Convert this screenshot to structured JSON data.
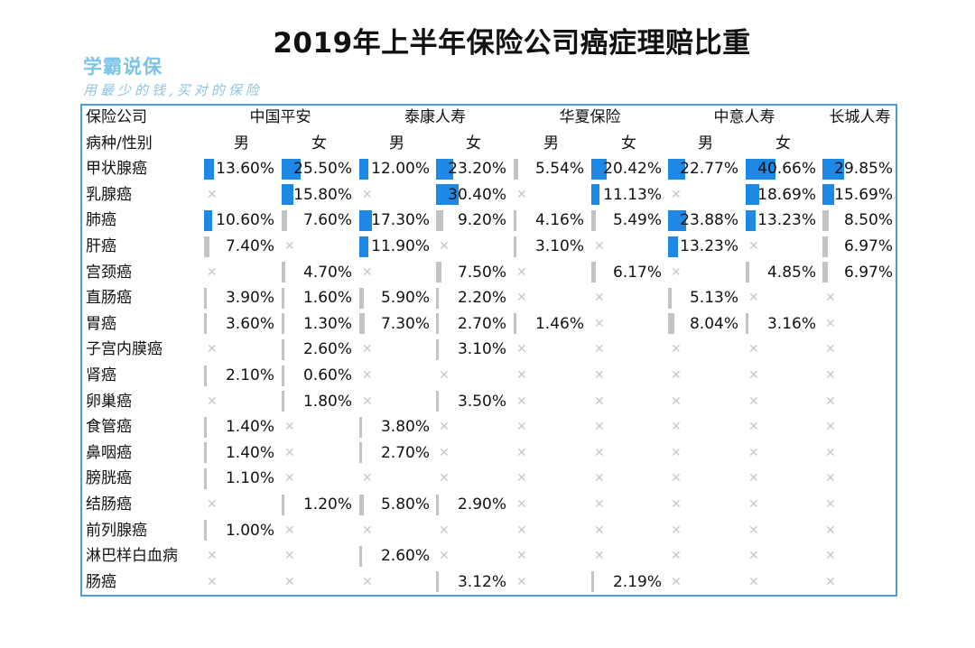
{
  "title": "2019年上半年保险公司癌症理赔比重",
  "logo": {
    "name": "学霸说保",
    "slogan": "用最少的钱,买对的保险"
  },
  "colors": {
    "bar_high": "#1e88e5",
    "bar_low": "#c3c3c3",
    "border": "#4a9ee0",
    "missing": "#c8c8c8"
  },
  "table": {
    "company_header": "保险公司",
    "subheader": "病种/性别",
    "companies": [
      "中国平安",
      "泰康人寿",
      "华夏保险",
      "中意人寿",
      "长城人寿"
    ],
    "genders": [
      "男",
      "女",
      "男",
      "女",
      "男",
      "女",
      "男",
      "女",
      ""
    ],
    "missing_icon": "cross-icon",
    "rows": [
      {
        "disease": "甲状腺癌",
        "values": [
          "13.60%",
          "25.50%",
          "12.00%",
          "23.20%",
          "5.54%",
          "20.42%",
          "22.77%",
          "40.66%",
          "29.85%"
        ]
      },
      {
        "disease": "乳腺癌",
        "values": [
          null,
          "15.80%",
          null,
          "30.40%",
          null,
          "11.13%",
          null,
          "18.69%",
          "15.69%"
        ]
      },
      {
        "disease": "肺癌",
        "values": [
          "10.60%",
          "7.60%",
          "17.30%",
          "9.20%",
          "4.16%",
          "5.49%",
          "23.88%",
          "13.23%",
          "8.50%"
        ]
      },
      {
        "disease": "肝癌",
        "values": [
          "7.40%",
          null,
          "11.90%",
          null,
          "3.10%",
          null,
          "13.23%",
          null,
          "6.97%"
        ]
      },
      {
        "disease": "宫颈癌",
        "values": [
          null,
          "4.70%",
          null,
          "7.50%",
          null,
          "6.17%",
          null,
          "4.85%",
          "6.97%"
        ]
      },
      {
        "disease": "直肠癌",
        "values": [
          "3.90%",
          "1.60%",
          "5.90%",
          "2.20%",
          null,
          null,
          "5.13%",
          null,
          null
        ]
      },
      {
        "disease": "胃癌",
        "values": [
          "3.60%",
          "1.30%",
          "7.30%",
          "2.70%",
          "1.46%",
          null,
          "8.04%",
          "3.16%",
          null
        ]
      },
      {
        "disease": "子宫内膜癌",
        "values": [
          null,
          "2.60%",
          null,
          "3.10%",
          null,
          null,
          null,
          null,
          null
        ]
      },
      {
        "disease": "肾癌",
        "values": [
          "2.10%",
          "0.60%",
          null,
          null,
          null,
          null,
          null,
          null,
          null
        ]
      },
      {
        "disease": "卵巢癌",
        "values": [
          null,
          "1.80%",
          null,
          "3.50%",
          null,
          null,
          null,
          null,
          null
        ]
      },
      {
        "disease": "食管癌",
        "values": [
          "1.40%",
          null,
          "3.80%",
          null,
          null,
          null,
          null,
          null,
          null
        ]
      },
      {
        "disease": "鼻咽癌",
        "values": [
          "1.40%",
          null,
          "2.70%",
          null,
          null,
          null,
          null,
          null,
          null
        ]
      },
      {
        "disease": "膀胱癌",
        "values": [
          "1.10%",
          null,
          null,
          null,
          null,
          null,
          null,
          null,
          null
        ]
      },
      {
        "disease": "结肠癌",
        "values": [
          null,
          "1.20%",
          "5.80%",
          "2.90%",
          null,
          null,
          null,
          null,
          null
        ]
      },
      {
        "disease": "前列腺癌",
        "values": [
          "1.00%",
          null,
          null,
          null,
          null,
          null,
          null,
          null,
          null
        ]
      },
      {
        "disease": "淋巴样白血病",
        "values": [
          null,
          null,
          "2.60%",
          null,
          null,
          null,
          null,
          null,
          null
        ]
      },
      {
        "disease": "肠癌",
        "values": [
          null,
          null,
          null,
          "3.12%",
          null,
          "2.19%",
          null,
          null,
          null
        ]
      }
    ]
  }
}
